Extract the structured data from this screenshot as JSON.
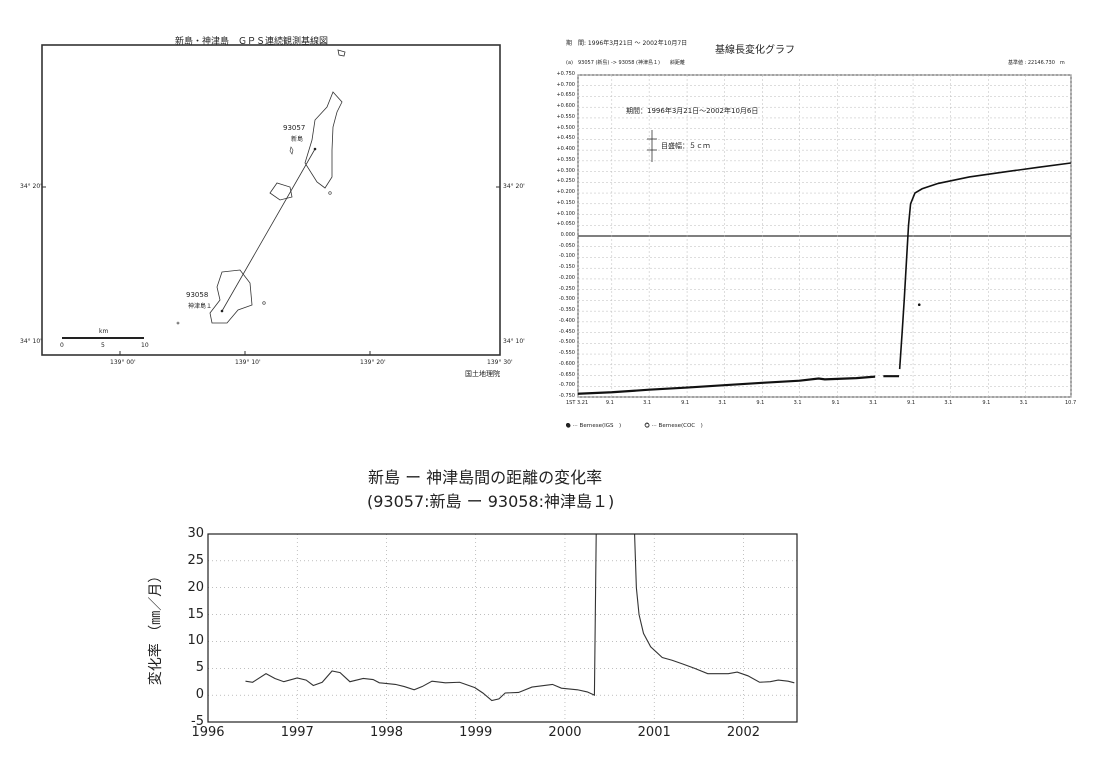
{
  "map": {
    "title": "新島・神津島　ＧＰＳ連続観測基線図",
    "station_north": {
      "id": "93057",
      "name": "新島"
    },
    "station_south": {
      "id": "93058",
      "name": "神津島１"
    },
    "lat_labels": [
      "34° 20'",
      "34° 10'"
    ],
    "lon_labels": [
      "139° 00'",
      "139° 10'",
      "139° 20'",
      "139° 30'"
    ],
    "scale_unit": "km",
    "scale_ticks": [
      "0",
      "5",
      "10"
    ],
    "credit": "国土地理院"
  },
  "chart_data": [
    {
      "type": "line",
      "header_period": "期　間: 1996年3月21日 ～ 2002年10月7日",
      "title": "基線長変化グラフ",
      "subheader": "(a)　93057 (新島) -> 93058 (神津島１)　　斜距離",
      "reference": "基準値 : 22146.730　m",
      "annotation_period": "期間：1996年3月21日～2002年10月6日",
      "annotation_scale": "目盛幅：５ｃｍ",
      "ylim": [
        -0.75,
        0.75
      ],
      "yticks": [
        "+0.750",
        "+0.700",
        "+0.650",
        "+0.600",
        "+0.550",
        "+0.500",
        "+0.450",
        "+0.400",
        "+0.350",
        "+0.300",
        "+0.250",
        "+0.200",
        "+0.150",
        "+0.100",
        "+0.050",
        "0.000",
        "-0.050",
        "-0.100",
        "-0.150",
        "-0.200",
        "-0.250",
        "-0.300",
        "-0.350",
        "-0.400",
        "-0.450",
        "-0.500",
        "-0.550",
        "-0.600",
        "-0.650",
        "-0.700",
        "-0.750"
      ],
      "xlim": [
        "1996-03-21",
        "2002-10-07"
      ],
      "xticks": [
        {
          "date": "1996-03-21",
          "label": "1ST 3.21"
        },
        {
          "date": "1996-09-01",
          "label": "9.1"
        },
        {
          "date": "1997-03-01",
          "label": "3.1"
        },
        {
          "date": "1997-09-01",
          "label": "9.1"
        },
        {
          "date": "1998-03-01",
          "label": "3.1"
        },
        {
          "date": "1998-09-01",
          "label": "9.1"
        },
        {
          "date": "1999-03-01",
          "label": "3.1"
        },
        {
          "date": "1999-09-01",
          "label": "9.1"
        },
        {
          "date": "2000-03-01",
          "label": "3.1"
        },
        {
          "date": "2000-09-01",
          "label": "9.1"
        },
        {
          "date": "2001-03-01",
          "label": "3.1"
        },
        {
          "date": "2001-09-01",
          "label": "9.1"
        },
        {
          "date": "2002-03-01",
          "label": "3.1"
        },
        {
          "date": "2002-10-07",
          "label": "10.7"
        }
      ],
      "grid": true,
      "legend": [
        "● ··· Bernese(IGS　)",
        "○ ··· Bernese(COC　)"
      ],
      "legend_placement": "bottom-left",
      "series": [
        {
          "name": "Bernese(IGS )",
          "segments": [
            [
              [
                "1996-03-21",
                -0.735
              ],
              [
                "1996-09-01",
                -0.728
              ],
              [
                "1997-03-01",
                -0.716
              ],
              [
                "1997-09-01",
                -0.706
              ],
              [
                "1998-03-01",
                -0.695
              ],
              [
                "1998-09-01",
                -0.684
              ],
              [
                "1999-03-01",
                -0.674
              ],
              [
                "1999-06-01",
                -0.664
              ],
              [
                "1999-07-01",
                -0.668
              ],
              [
                "1999-12-01",
                -0.662
              ],
              [
                "2000-03-01",
                -0.655
              ]
            ],
            [
              [
                "2000-04-10",
                -0.653
              ],
              [
                "2000-06-25",
                -0.653
              ]
            ],
            [
              [
                "2000-06-28",
                -0.62
              ],
              [
                "2000-07-10",
                -0.45
              ],
              [
                "2000-07-20",
                -0.3
              ],
              [
                "2000-08-01",
                -0.1
              ],
              [
                "2000-08-10",
                0.05
              ],
              [
                "2000-08-20",
                0.15
              ],
              [
                "2000-09-10",
                0.2
              ],
              [
                "2000-10-15",
                0.22
              ],
              [
                "2001-01-01",
                0.245
              ],
              [
                "2001-06-01",
                0.275
              ],
              [
                "2001-12-01",
                0.3
              ],
              [
                "2002-05-01",
                0.32
              ],
              [
                "2002-10-06",
                0.34
              ]
            ]
          ]
        },
        {
          "name": "outlier",
          "points": [
            [
              "2000-10-01",
              -0.32
            ]
          ]
        }
      ]
    },
    {
      "type": "line",
      "title": "新島 ー 神津島間の距離の変化率",
      "subtitle": "(93057:新島 ー 93058:神津島１)",
      "ylabel": "変化率 （㎜／月）",
      "xlabel": "",
      "xlim": [
        1996,
        2002.6
      ],
      "ylim": [
        -5,
        30
      ],
      "xticks": [
        1996,
        1997,
        1998,
        1999,
        2000,
        2001,
        2002
      ],
      "yticks": [
        30,
        25,
        20,
        15,
        10,
        5,
        0,
        -5
      ],
      "grid": true,
      "series": [
        {
          "points": [
            [
              1996.42,
              2.6
            ],
            [
              1996.5,
              2.4
            ],
            [
              1996.65,
              4.0
            ],
            [
              1996.75,
              3.1
            ],
            [
              1996.85,
              2.5
            ],
            [
              1997.0,
              3.2
            ],
            [
              1997.1,
              2.8
            ],
            [
              1997.18,
              1.8
            ],
            [
              1997.28,
              2.4
            ],
            [
              1997.39,
              4.5
            ],
            [
              1997.48,
              4.2
            ],
            [
              1997.59,
              2.5
            ],
            [
              1997.74,
              3.1
            ],
            [
              1997.85,
              2.9
            ],
            [
              1997.92,
              2.3
            ],
            [
              1998.1,
              2.0
            ],
            [
              1998.2,
              1.6
            ],
            [
              1998.31,
              1.0
            ],
            [
              1998.4,
              1.6
            ],
            [
              1998.51,
              2.6
            ],
            [
              1998.66,
              2.3
            ],
            [
              1998.82,
              2.4
            ],
            [
              1998.99,
              1.4
            ],
            [
              1999.08,
              0.4
            ],
            [
              1999.18,
              -1.0
            ],
            [
              1999.26,
              -0.7
            ],
            [
              1999.33,
              0.4
            ],
            [
              1999.48,
              0.5
            ],
            [
              1999.63,
              1.5
            ],
            [
              1999.86,
              2.0
            ],
            [
              1999.96,
              1.3
            ],
            [
              2000.14,
              1.0
            ],
            [
              2000.25,
              0.6
            ],
            [
              2000.33,
              0.0
            ],
            [
              2000.35,
              30
            ]
          ]
        },
        {
          "points": [
            [
              2000.78,
              30
            ],
            [
              2000.8,
              20
            ],
            [
              2000.83,
              15
            ],
            [
              2000.88,
              11.5
            ],
            [
              2000.96,
              9
            ],
            [
              2001.09,
              7
            ],
            [
              2001.2,
              6.5
            ],
            [
              2001.32,
              5.8
            ],
            [
              2001.45,
              5.0
            ],
            [
              2001.6,
              4.0
            ],
            [
              2001.83,
              4.0
            ],
            [
              2001.93,
              4.3
            ],
            [
              2002.05,
              3.6
            ],
            [
              2002.18,
              2.4
            ],
            [
              2002.3,
              2.5
            ],
            [
              2002.39,
              2.8
            ],
            [
              2002.5,
              2.6
            ],
            [
              2002.57,
              2.3
            ]
          ]
        }
      ]
    }
  ]
}
